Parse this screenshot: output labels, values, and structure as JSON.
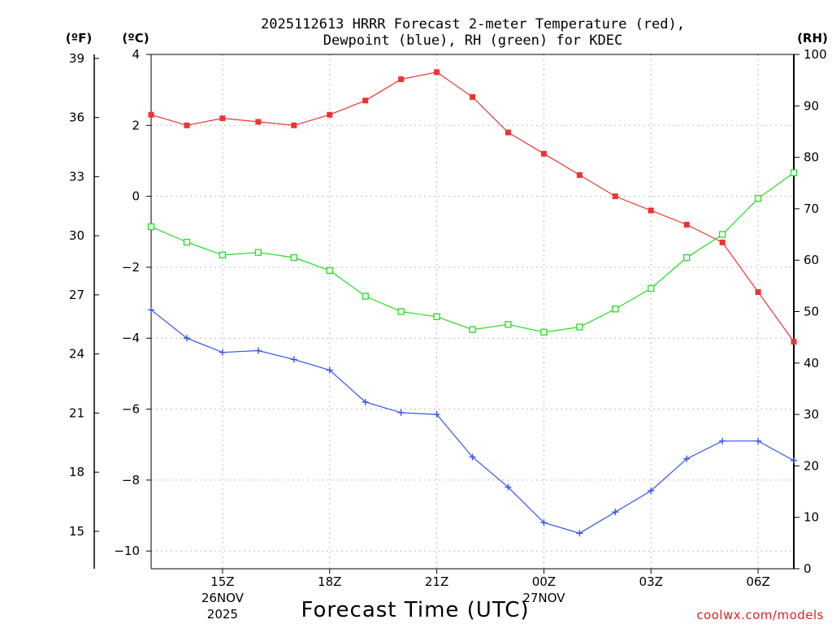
{
  "chart_data": {
    "type": "line",
    "title_line1": "2025112613 HRRR Forecast 2-meter Temperature (red),",
    "title_line2": "Dewpoint (blue), RH (green) for KDEC",
    "xlabel": "Forecast Time (UTC)",
    "credit": "coolwx.com/models",
    "left_unit_f": "(ºF)",
    "left_unit_c": "(ºC)",
    "right_unit": "(RH)",
    "x_hours": [
      13,
      14,
      15,
      16,
      17,
      18,
      19,
      20,
      21,
      22,
      23,
      24,
      25,
      26,
      27,
      28,
      29,
      30,
      31
    ],
    "xlim": [
      13,
      31
    ],
    "c_axis": {
      "range": [
        -10.5,
        4.0
      ],
      "ticks": [
        4,
        2,
        0,
        -2,
        -4,
        -6,
        -8,
        -10
      ]
    },
    "f_axis": {
      "ticks": [
        39,
        36,
        33,
        30,
        27,
        24,
        21,
        18,
        15
      ]
    },
    "rh_axis": {
      "range": [
        0,
        100
      ],
      "ticks": [
        100,
        90,
        80,
        70,
        60,
        50,
        40,
        30,
        20,
        10,
        0
      ]
    },
    "x_ticks": [
      {
        "hour": 15,
        "label": "15Z",
        "sub1": "26NOV",
        "sub2": "2025"
      },
      {
        "hour": 18,
        "label": "18Z"
      },
      {
        "hour": 21,
        "label": "21Z"
      },
      {
        "hour": 24,
        "label": "00Z",
        "sub1": "27NOV"
      },
      {
        "hour": 27,
        "label": "03Z"
      },
      {
        "hour": 30,
        "label": "06Z"
      }
    ],
    "series": [
      {
        "name": "2-meter Temperature",
        "unit": "C",
        "color": "#ee3333",
        "marker": "filled-square",
        "values": [
          2.3,
          2.0,
          2.2,
          2.1,
          2.0,
          2.3,
          2.7,
          3.3,
          3.5,
          2.8,
          1.8,
          1.2,
          0.6,
          0.0,
          -0.4,
          -0.8,
          -1.3,
          -2.7,
          -4.1
        ]
      },
      {
        "name": "Dewpoint",
        "unit": "C",
        "color": "#3355ee",
        "marker": "plus",
        "values": [
          -3.2,
          -4.0,
          -4.4,
          -4.35,
          -4.6,
          -4.9,
          -5.8,
          -6.1,
          -6.15,
          -7.35,
          -8.2,
          -9.2,
          -9.5,
          -8.9,
          -8.3,
          -7.4,
          -6.9,
          -6.9,
          -7.45
        ]
      },
      {
        "name": "Relative Humidity",
        "unit": "%",
        "color": "#22dd22",
        "marker": "open-square",
        "values": [
          66.5,
          63.5,
          61,
          61.5,
          60.5,
          58,
          53,
          50,
          49,
          46.5,
          47.5,
          46,
          47,
          50.5,
          54.5,
          60.5,
          65,
          72,
          77
        ]
      }
    ]
  }
}
